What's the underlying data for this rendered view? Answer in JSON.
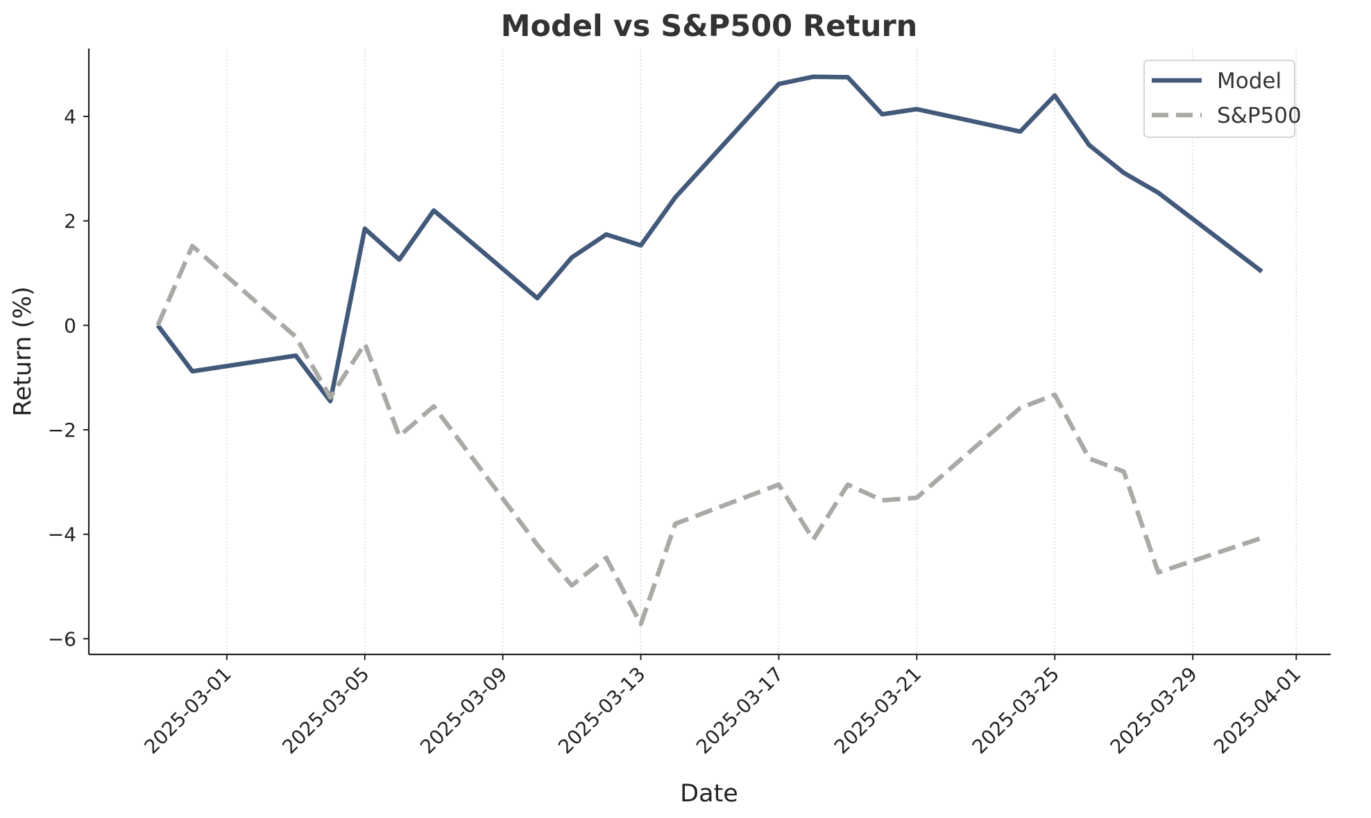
{
  "chart_data": {
    "type": "line",
    "title": "Model vs S&P500 Return",
    "xlabel": "Date",
    "ylabel": "Return (%)",
    "ylim": [
      -6.3,
      5.3
    ],
    "xlim": [
      "2025-02-25",
      "2025-04-02"
    ],
    "y_ticks": [
      -6,
      -4,
      -2,
      0,
      2,
      4
    ],
    "y_tick_labels": [
      "−6",
      "−4",
      "−2",
      "0",
      "2",
      "4"
    ],
    "x_ticks": [
      "2025-03-01",
      "2025-03-05",
      "2025-03-09",
      "2025-03-13",
      "2025-03-17",
      "2025-03-21",
      "2025-03-25",
      "2025-03-29",
      "2025-04-01"
    ],
    "grid": "vertical dotted",
    "legend_position": "top-right",
    "series": [
      {
        "name": "Model",
        "color": "#43597a",
        "style": "solid",
        "x": [
          "2025-02-27",
          "2025-02-28",
          "2025-03-03",
          "2025-03-04",
          "2025-03-05",
          "2025-03-06",
          "2025-03-07",
          "2025-03-10",
          "2025-03-11",
          "2025-03-12",
          "2025-03-13",
          "2025-03-14",
          "2025-03-17",
          "2025-03-18",
          "2025-03-19",
          "2025-03-20",
          "2025-03-21",
          "2025-03-24",
          "2025-03-25",
          "2025-03-26",
          "2025-03-27",
          "2025-03-28",
          "2025-03-31"
        ],
        "values": [
          0.0,
          -0.88,
          -0.58,
          -1.45,
          1.85,
          1.26,
          2.2,
          0.52,
          1.3,
          1.74,
          1.53,
          2.45,
          4.62,
          4.76,
          4.75,
          4.04,
          4.14,
          3.71,
          4.4,
          3.45,
          2.92,
          2.54,
          1.03
        ]
      },
      {
        "name": "S&P500",
        "color": "#a9a9a6",
        "style": "dashed",
        "x": [
          "2025-02-27",
          "2025-02-28",
          "2025-03-03",
          "2025-03-04",
          "2025-03-05",
          "2025-03-06",
          "2025-03-07",
          "2025-03-10",
          "2025-03-11",
          "2025-03-12",
          "2025-03-13",
          "2025-03-14",
          "2025-03-17",
          "2025-03-18",
          "2025-03-19",
          "2025-03-20",
          "2025-03-21",
          "2025-03-24",
          "2025-03-25",
          "2025-03-26",
          "2025-03-27",
          "2025-03-28",
          "2025-03-31"
        ],
        "values": [
          0.0,
          1.52,
          -0.22,
          -1.38,
          -0.35,
          -2.12,
          -1.55,
          -4.2,
          -4.98,
          -4.45,
          -5.72,
          -3.8,
          -3.05,
          -4.1,
          -3.05,
          -3.35,
          -3.3,
          -1.58,
          -1.33,
          -2.55,
          -2.8,
          -4.73,
          -4.07
        ]
      }
    ]
  }
}
